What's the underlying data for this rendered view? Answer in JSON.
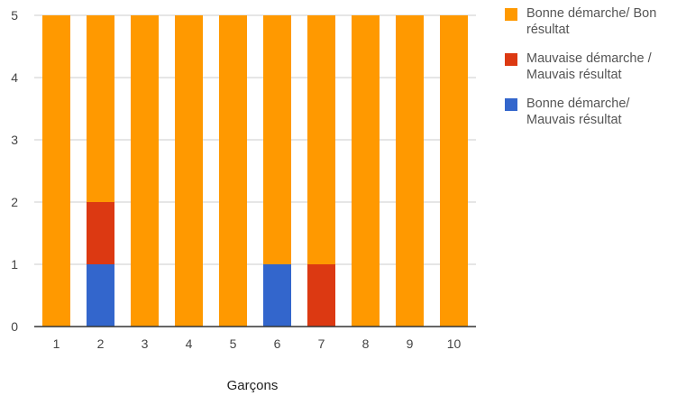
{
  "chart_data": {
    "type": "bar",
    "stacked": true,
    "categories": [
      "1",
      "2",
      "3",
      "4",
      "5",
      "6",
      "7",
      "8",
      "9",
      "10"
    ],
    "series": [
      {
        "name": "Bonne démarche/ Mauvais résultat",
        "color": "#3366cc",
        "values": [
          0,
          1,
          0,
          0,
          0,
          1,
          0,
          0,
          0,
          0
        ]
      },
      {
        "name": "Mauvaise démarche / Mauvais résultat",
        "color": "#dc3912",
        "values": [
          0,
          1,
          0,
          0,
          0,
          0,
          1,
          0,
          0,
          0
        ]
      },
      {
        "name": "Bonne démarche/ Bon résultat",
        "color": "#ff9900",
        "values": [
          5,
          3,
          5,
          5,
          5,
          4,
          4,
          5,
          5,
          5
        ]
      }
    ],
    "legend_order": [
      2,
      1,
      0
    ],
    "yticks": [
      0,
      1,
      2,
      3,
      4,
      5
    ],
    "ylim": [
      0,
      5
    ],
    "xlabel": "Garçons",
    "ylabel": "",
    "title": "",
    "grid": true,
    "legend_position": "right"
  }
}
